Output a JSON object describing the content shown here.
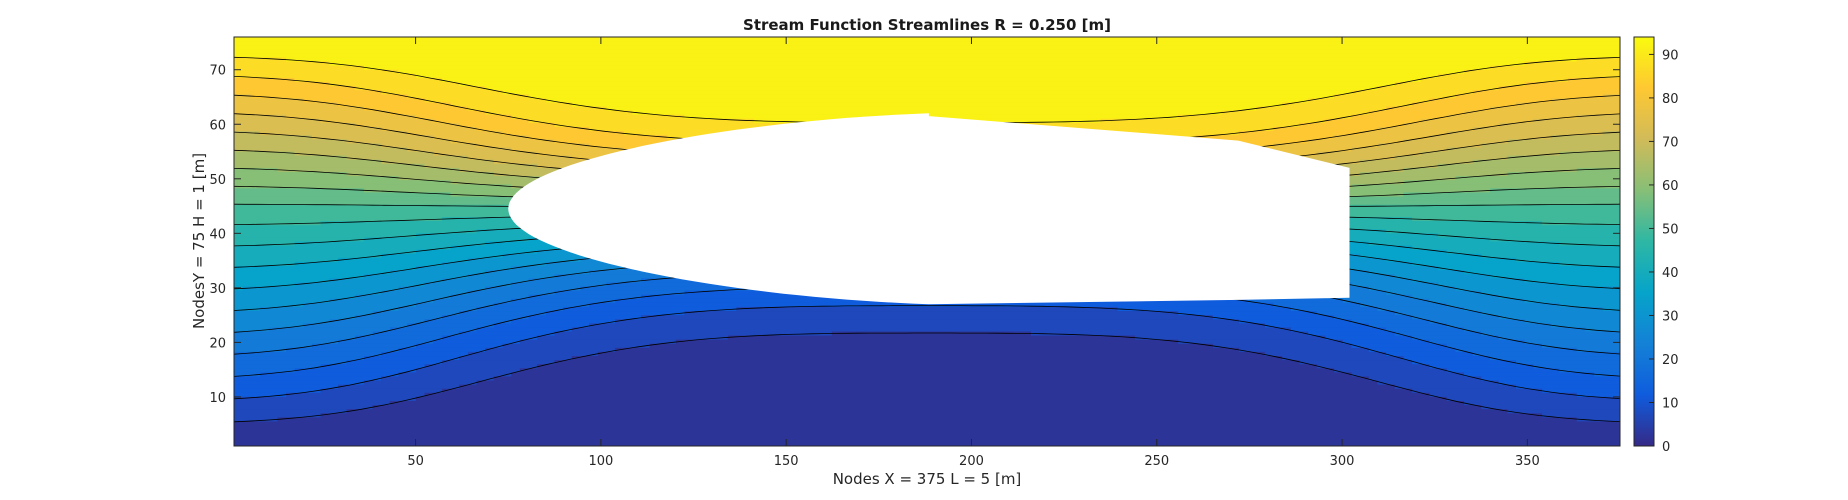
{
  "chart_data": {
    "type": "filled-contour",
    "title": "Stream Function Streamlines R = 0.250 [m]",
    "xlabel": "Nodes X  = 375      L  =  5  [m]",
    "ylabel": "NodesY  = 75      H  =  1  [m]",
    "xlim": [
      1,
      375
    ],
    "ylim": [
      1,
      76
    ],
    "xticks": [
      "50",
      "100",
      "150",
      "200",
      "250",
      "300",
      "350"
    ],
    "yticks": [
      "10",
      "20",
      "30",
      "40",
      "50",
      "60",
      "70"
    ],
    "contour_levels": [
      0,
      4.7,
      9.4,
      14.1,
      18.8,
      23.5,
      28.2,
      32.9,
      37.6,
      42.3,
      47,
      51.7,
      56.4,
      61.1,
      65.8,
      70.5,
      75.2,
      79.9,
      84.6,
      89.3,
      94
    ],
    "colorbar": {
      "limits": [
        0,
        94
      ],
      "ticks": [
        "0",
        "10",
        "20",
        "30",
        "40",
        "50",
        "60",
        "70",
        "80",
        "90"
      ]
    },
    "colormap": "parula",
    "colormap_stops": [
      "#352a87",
      "#0f5cdd",
      "#1481d6",
      "#06a4ca",
      "#2eb7a4",
      "#87bf77",
      "#d1bb59",
      "#fec832",
      "#f9fb0e"
    ],
    "obstacle": {
      "shape": "ellipse-like cutout",
      "x_range": [
        75,
        302
      ],
      "y_range": [
        27,
        62
      ],
      "fill": "#ffffff"
    },
    "grid": false
  }
}
